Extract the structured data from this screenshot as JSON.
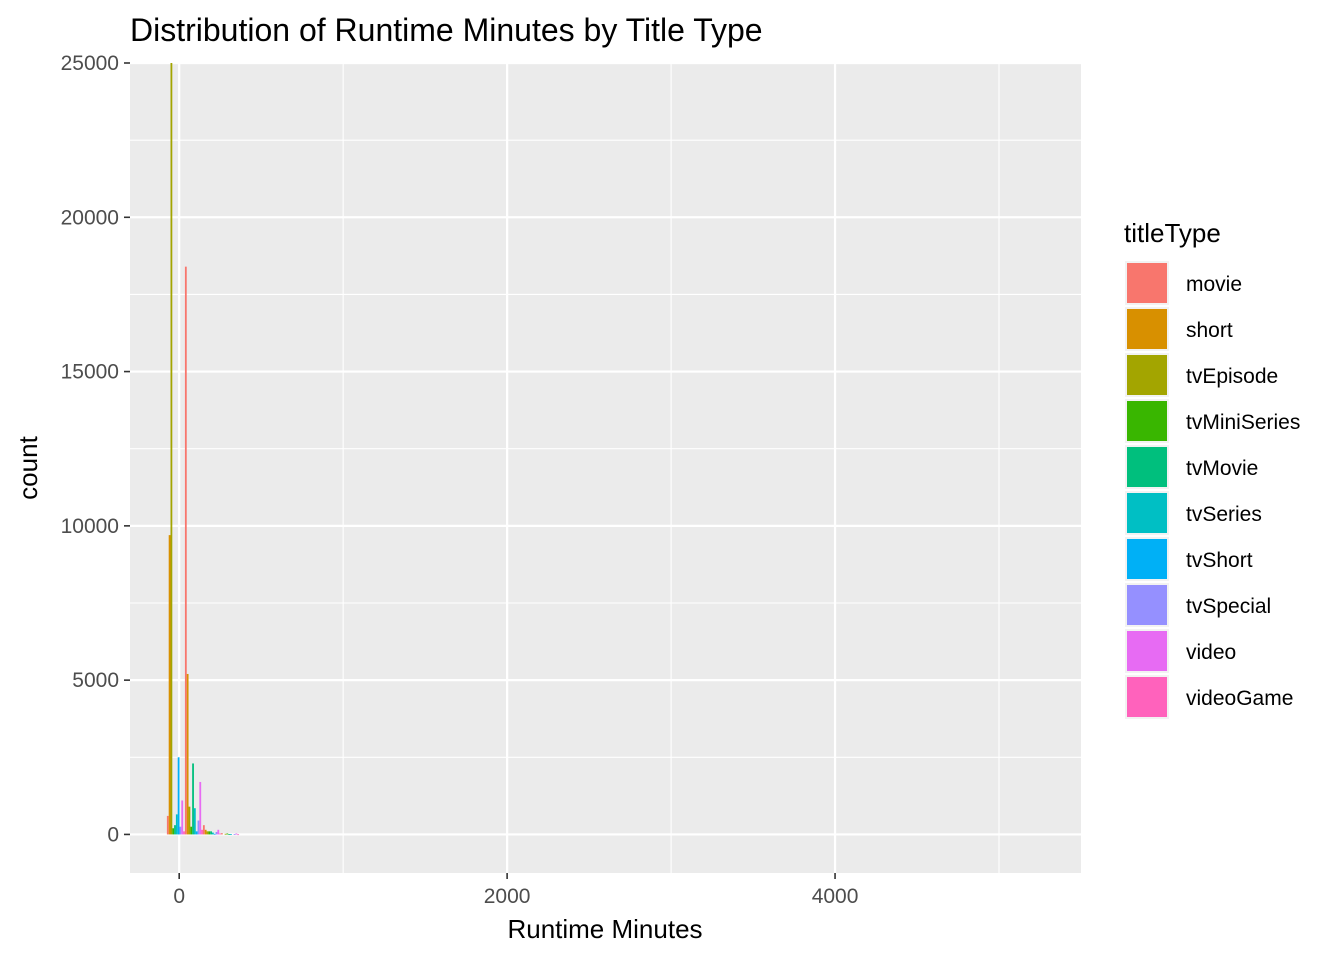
{
  "chart_data": {
    "type": "bar",
    "title": "Distribution of Runtime Minutes by Title Type",
    "xlabel": "Runtime Minutes",
    "ylabel": "count",
    "xlim": [
      -300,
      5500
    ],
    "ylim": [
      -1250,
      25000
    ],
    "x_ticks": [
      0,
      2000,
      4000
    ],
    "x_tick_labels": [
      "0",
      "2000",
      "4000"
    ],
    "x_minor_grid": [
      1000,
      3000,
      5000
    ],
    "y_ticks": [
      0,
      5000,
      10000,
      15000,
      20000,
      25000
    ],
    "y_tick_labels": [
      "0",
      "5000",
      "10000",
      "15000",
      "20000",
      "25000"
    ],
    "y_minor_grid": [
      2500,
      7500,
      12500,
      17500,
      22500
    ],
    "grid": true,
    "position": "dodge",
    "bin_width": 110,
    "bin_centers": [
      -20,
      90,
      200,
      310
    ],
    "legend": {
      "title": "titleType",
      "placement": "right"
    },
    "series": [
      {
        "name": "movie",
        "color": "#F8766D",
        "values": [
          600,
          18400,
          300,
          40
        ]
      },
      {
        "name": "short",
        "color": "#D89000",
        "values": [
          9700,
          5200,
          150,
          0
        ]
      },
      {
        "name": "tvEpisode",
        "color": "#A3A500",
        "values": [
          25000,
          900,
          100,
          20
        ]
      },
      {
        "name": "tvMiniSeries",
        "color": "#39B600",
        "values": [
          200,
          250,
          100,
          30
        ]
      },
      {
        "name": "tvMovie",
        "color": "#00BF7D",
        "values": [
          300,
          2300,
          100,
          10
        ]
      },
      {
        "name": "tvSeries",
        "color": "#00BFC4",
        "values": [
          650,
          850,
          60,
          10
        ]
      },
      {
        "name": "tvShort",
        "color": "#00B0F6",
        "values": [
          2500,
          100,
          20,
          0
        ]
      },
      {
        "name": "tvSpecial",
        "color": "#9590FF",
        "values": [
          250,
          450,
          80,
          10
        ]
      },
      {
        "name": "video",
        "color": "#E76BF3",
        "values": [
          1100,
          1700,
          150,
          30
        ]
      },
      {
        "name": "videoGame",
        "color": "#FF62BC",
        "values": [
          100,
          150,
          30,
          5
        ]
      }
    ]
  }
}
